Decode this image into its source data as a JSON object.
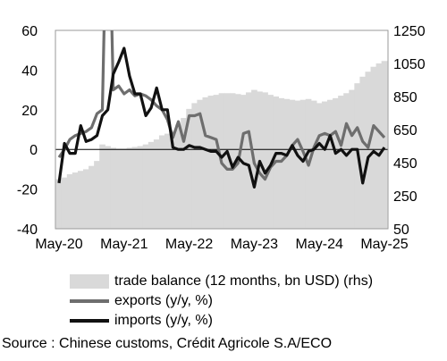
{
  "chart_data": {
    "type": "line",
    "x_labels": [
      "May-20",
      "May-21",
      "May-22",
      "May-23",
      "May-24",
      "May-25"
    ],
    "y_left": {
      "ylim": [
        -40,
        60
      ],
      "ticks": [
        -40,
        -20,
        0,
        20,
        40,
        60
      ]
    },
    "y_right": {
      "ylim": [
        50,
        1250
      ],
      "ticks": [
        50,
        250,
        450,
        650,
        850,
        1050,
        1250
      ]
    },
    "months": [
      "2020-05",
      "2020-06",
      "2020-07",
      "2020-08",
      "2020-09",
      "2020-10",
      "2020-11",
      "2020-12",
      "2021-01",
      "2021-02",
      "2021-03",
      "2021-04",
      "2021-05",
      "2021-06",
      "2021-07",
      "2021-08",
      "2021-09",
      "2021-10",
      "2021-11",
      "2021-12",
      "2022-01",
      "2022-02",
      "2022-03",
      "2022-04",
      "2022-05",
      "2022-06",
      "2022-07",
      "2022-08",
      "2022-09",
      "2022-10",
      "2022-11",
      "2022-12",
      "2023-01",
      "2023-02",
      "2023-03",
      "2023-04",
      "2023-05",
      "2023-06",
      "2023-07",
      "2023-08",
      "2023-09",
      "2023-10",
      "2023-11",
      "2023-12",
      "2024-01",
      "2024-02",
      "2024-03",
      "2024-04",
      "2024-05",
      "2024-06",
      "2024-07",
      "2024-08",
      "2024-09",
      "2024-10",
      "2024-11",
      "2024-12",
      "2025-01",
      "2025-02",
      "2025-03",
      "2025-04",
      "2025-05"
    ],
    "series": [
      {
        "name": "trade balance (12 months, bn USD) (rhs)",
        "kind": "area",
        "axis": "right",
        "color": "#d9d9d9",
        "values": [
          350,
          360,
          380,
          390,
          400,
          410,
          430,
          460,
          560,
          550,
          540,
          535,
          535,
          540,
          545,
          550,
          560,
          575,
          590,
          615,
          625,
          640,
          680,
          720,
          775,
          810,
          830,
          845,
          855,
          860,
          870,
          870,
          870,
          865,
          860,
          875,
          890,
          880,
          875,
          860,
          850,
          840,
          835,
          830,
          825,
          830,
          835,
          825,
          810,
          820,
          830,
          840,
          855,
          870,
          890,
          930,
          970,
          1000,
          1030,
          1050,
          1065
        ]
      },
      {
        "name": "exports (y/y, %)",
        "kind": "line",
        "axis": "left",
        "color": "#6e6e6e",
        "values": [
          -4,
          0,
          5,
          7,
          8,
          9,
          11,
          18,
          20,
          150,
          30,
          32,
          28,
          30,
          27,
          28,
          27,
          25,
          22,
          20,
          15,
          6,
          14,
          4,
          17,
          17,
          18,
          7,
          6,
          5,
          -7,
          -10,
          -10,
          -7,
          8,
          9,
          -7,
          -12,
          -15,
          -9,
          -6,
          -6,
          -3,
          2,
          5,
          -1,
          -8,
          1,
          7,
          8,
          7,
          9,
          2,
          13,
          7,
          11,
          4,
          1,
          12,
          9,
          6
        ]
      },
      {
        "name": "imports (y/y, %)",
        "kind": "line",
        "axis": "left",
        "color": "#111111",
        "values": [
          -17,
          3,
          -2,
          -2,
          12,
          4,
          5,
          7,
          17,
          20,
          38,
          44,
          51,
          37,
          28,
          28,
          17,
          21,
          31,
          20,
          20,
          1,
          0,
          0,
          2,
          1,
          1,
          0,
          -1,
          -1,
          -4,
          -1,
          -9,
          -4,
          -7,
          -8,
          -19,
          -6,
          -12,
          -8,
          -2,
          -2,
          -3,
          2,
          -3,
          -6,
          -1,
          0,
          3,
          0,
          7,
          -2,
          0,
          -3,
          0,
          0,
          -17,
          -4,
          -1,
          -3,
          1
        ]
      }
    ],
    "legend": {
      "position": "below"
    }
  },
  "source_text": "Source : Chinese customs, Crédit Agricole S.A/ECO"
}
